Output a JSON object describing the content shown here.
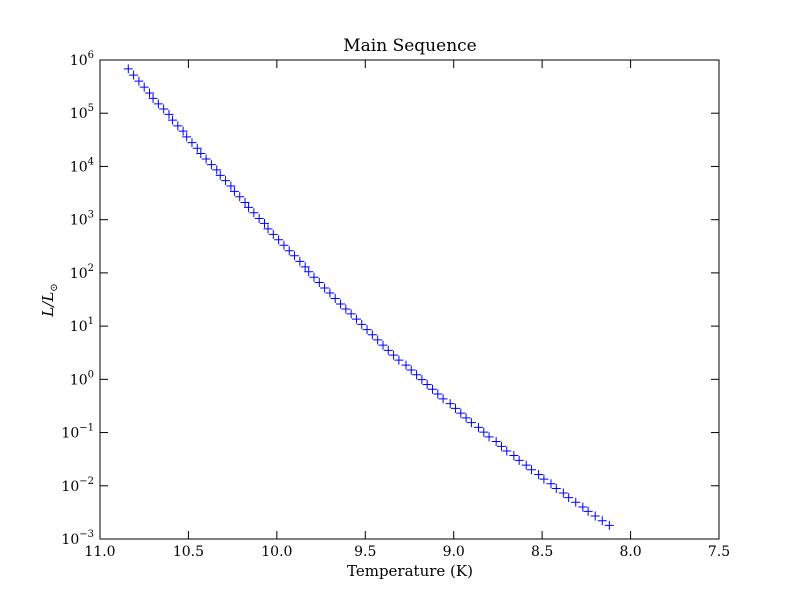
{
  "chart_data": {
    "type": "scatter",
    "title": "Main Sequence",
    "xlabel": "Temperature (K)",
    "ylabel_parts": {
      "main": "L/L",
      "sub": "⊙"
    },
    "x_scale": "linear",
    "x_inverted": true,
    "xlim": [
      11.0,
      7.5
    ],
    "y_scale": "log",
    "ylim": [
      0.001,
      1000000
    ],
    "x_ticks": [
      {
        "value": 11.0,
        "label": "11.0"
      },
      {
        "value": 10.5,
        "label": "10.5"
      },
      {
        "value": 10.0,
        "label": "10.0"
      },
      {
        "value": 9.5,
        "label": "9.5"
      },
      {
        "value": 9.0,
        "label": "9.0"
      },
      {
        "value": 8.5,
        "label": "8.5"
      },
      {
        "value": 8.0,
        "label": "8.0"
      },
      {
        "value": 7.5,
        "label": "7.5"
      }
    ],
    "y_ticks": [
      {
        "value": 1000000,
        "base": "10",
        "exp": "6"
      },
      {
        "value": 100000,
        "base": "10",
        "exp": "5"
      },
      {
        "value": 10000,
        "base": "10",
        "exp": "4"
      },
      {
        "value": 1000,
        "base": "10",
        "exp": "3"
      },
      {
        "value": 100,
        "base": "10",
        "exp": "2"
      },
      {
        "value": 10,
        "base": "10",
        "exp": "1"
      },
      {
        "value": 1,
        "base": "10",
        "exp": "0"
      },
      {
        "value": 0.1,
        "base": "10",
        "exp": "−1"
      },
      {
        "value": 0.01,
        "base": "10",
        "exp": "−2"
      },
      {
        "value": 0.001,
        "base": "10",
        "exp": "−3"
      }
    ],
    "grid": false,
    "marker": "+",
    "marker_color": "#0000ff",
    "series": [
      {
        "points": [
          [
            10.84,
            680000.0
          ],
          [
            10.81,
            520000.0
          ],
          [
            10.78,
            400000.0
          ],
          [
            10.75,
            310000.0
          ],
          [
            10.72,
            240000.0
          ],
          [
            10.7,
            190000.0
          ],
          [
            10.67,
            150000.0
          ],
          [
            10.64,
            120000.0
          ],
          [
            10.61,
            95000.0
          ],
          [
            10.59,
            74000.0
          ],
          [
            10.56,
            58000.0
          ],
          [
            10.53,
            46000.0
          ],
          [
            10.51,
            36000.0
          ],
          [
            10.48,
            28000.0
          ],
          [
            10.45,
            22000.0
          ],
          [
            10.43,
            17500.0
          ],
          [
            10.4,
            13800.0
          ],
          [
            10.37,
            10800.0
          ],
          [
            10.34,
            8600.0
          ],
          [
            10.32,
            6800.0
          ],
          [
            10.29,
            5400.0
          ],
          [
            10.26,
            4300.0
          ],
          [
            10.24,
            3400.0
          ],
          [
            10.21,
            2700.0
          ],
          [
            10.18,
            2100.0
          ],
          [
            10.16,
            1700.0
          ],
          [
            10.13,
            1350.0
          ],
          [
            10.1,
            1050.0
          ],
          [
            10.07,
            850.0
          ],
          [
            10.05,
            670.0
          ],
          [
            10.02,
            530.0
          ],
          [
            9.99,
            420.0
          ],
          [
            9.96,
            330.0
          ],
          [
            9.93,
            260.0
          ],
          [
            9.9,
            210.0
          ],
          [
            9.87,
            165.0
          ],
          [
            9.84,
            130.0
          ],
          [
            9.82,
            105.0
          ],
          [
            9.79,
            83.0
          ],
          [
            9.76,
            66.0
          ],
          [
            9.73,
            52.0
          ],
          [
            9.7,
            42.0
          ],
          [
            9.67,
            33.0
          ],
          [
            9.64,
            26.0
          ],
          [
            9.61,
            21.0
          ],
          [
            9.58,
            17.0
          ],
          [
            9.55,
            13.5
          ],
          [
            9.52,
            10.8
          ],
          [
            9.49,
            8.6
          ],
          [
            9.46,
            6.9
          ],
          [
            9.43,
            5.5
          ],
          [
            9.4,
            4.4
          ],
          [
            9.37,
            3.5
          ],
          [
            9.34,
            2.85
          ],
          [
            9.31,
            2.3
          ],
          [
            9.27,
            1.85
          ],
          [
            9.24,
            1.5
          ],
          [
            9.21,
            1.22
          ],
          [
            9.18,
            0.99
          ],
          [
            9.15,
            0.8
          ],
          [
            9.12,
            0.65
          ],
          [
            9.09,
            0.53
          ],
          [
            9.06,
            0.43
          ],
          [
            9.02,
            0.35
          ],
          [
            8.99,
            0.285
          ],
          [
            8.96,
            0.232
          ],
          [
            8.93,
            0.189
          ],
          [
            8.9,
            0.154
          ],
          [
            8.86,
            0.125
          ],
          [
            8.83,
            0.102
          ],
          [
            8.8,
            0.083
          ],
          [
            8.76,
            0.068
          ],
          [
            8.73,
            0.055
          ],
          [
            8.7,
            0.045
          ],
          [
            8.66,
            0.037
          ],
          [
            8.63,
            0.03
          ],
          [
            8.59,
            0.0245
          ],
          [
            8.56,
            0.02
          ],
          [
            8.52,
            0.0163
          ],
          [
            8.49,
            0.0133
          ],
          [
            8.45,
            0.0109
          ],
          [
            8.42,
            0.0089
          ],
          [
            8.38,
            0.0073
          ],
          [
            8.35,
            0.006
          ],
          [
            8.31,
            0.0049
          ],
          [
            8.27,
            0.004
          ],
          [
            8.24,
            0.0033
          ],
          [
            8.2,
            0.0027
          ],
          [
            8.16,
            0.0022
          ],
          [
            8.12,
            0.0018
          ]
        ]
      }
    ]
  }
}
